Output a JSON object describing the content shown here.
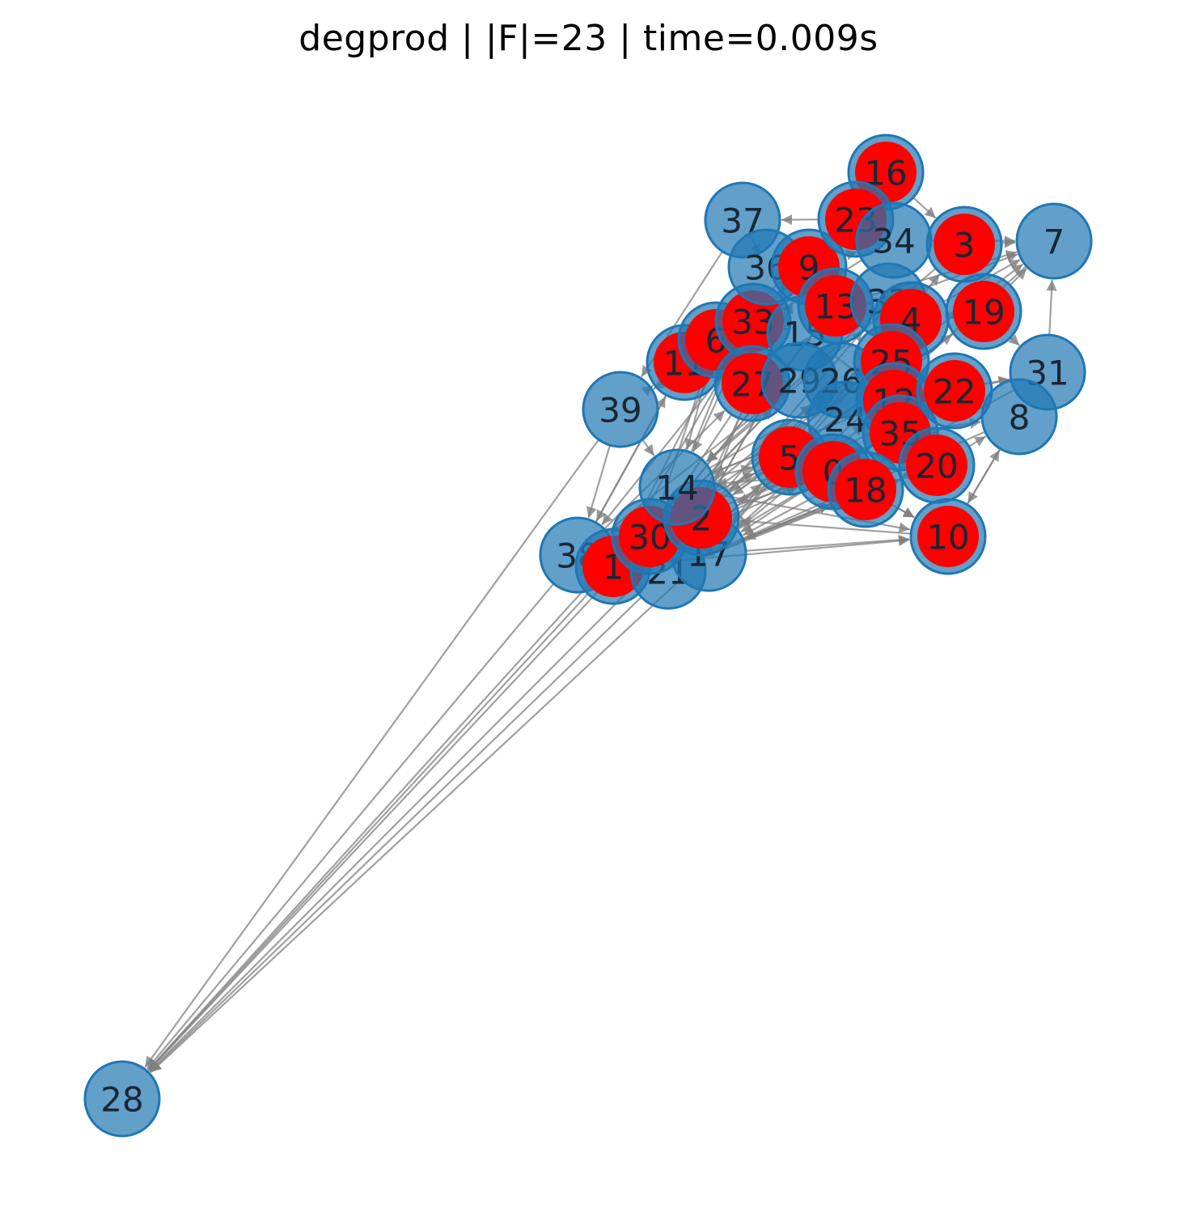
{
  "title": "degprod | |F|=23 | time=0.009s",
  "colors": {
    "normal_fill": "#1f77b4",
    "normal_stroke": "#1f77b4",
    "selected_fill": "#ff0000",
    "edge": "#808080",
    "label": "#1a2633"
  },
  "nodes": [
    {
      "id": "28",
      "selected": false
    },
    {
      "id": "38",
      "selected": false
    },
    {
      "id": "1",
      "selected": true
    },
    {
      "id": "21",
      "selected": false
    },
    {
      "id": "17",
      "selected": false
    },
    {
      "id": "30",
      "selected": true
    },
    {
      "id": "2",
      "selected": true
    },
    {
      "id": "14",
      "selected": false
    },
    {
      "id": "39",
      "selected": false
    },
    {
      "id": "11",
      "selected": true
    },
    {
      "id": "6",
      "selected": true
    },
    {
      "id": "33",
      "selected": true
    },
    {
      "id": "27",
      "selected": true
    },
    {
      "id": "37",
      "selected": false
    },
    {
      "id": "36",
      "selected": false
    },
    {
      "id": "9",
      "selected": true
    },
    {
      "id": "15",
      "selected": false
    },
    {
      "id": "29",
      "selected": false
    },
    {
      "id": "26",
      "selected": false
    },
    {
      "id": "24",
      "selected": false
    },
    {
      "id": "13",
      "selected": true
    },
    {
      "id": "32",
      "selected": false
    },
    {
      "id": "16",
      "selected": true
    },
    {
      "id": "23",
      "selected": true
    },
    {
      "id": "34",
      "selected": false
    },
    {
      "id": "3",
      "selected": true
    },
    {
      "id": "7",
      "selected": false
    },
    {
      "id": "4",
      "selected": true
    },
    {
      "id": "19",
      "selected": true
    },
    {
      "id": "25",
      "selected": true
    },
    {
      "id": "12",
      "selected": true
    },
    {
      "id": "35",
      "selected": true
    },
    {
      "id": "22",
      "selected": true
    },
    {
      "id": "31",
      "selected": false
    },
    {
      "id": "8",
      "selected": false
    },
    {
      "id": "5",
      "selected": true
    },
    {
      "id": "0",
      "selected": true
    },
    {
      "id": "18",
      "selected": true
    },
    {
      "id": "20",
      "selected": true
    },
    {
      "id": "10",
      "selected": true
    }
  ],
  "edges": [
    [
      "38",
      "28"
    ],
    [
      "1",
      "28"
    ],
    [
      "21",
      "28"
    ],
    [
      "17",
      "28"
    ],
    [
      "30",
      "28"
    ],
    [
      "14",
      "28"
    ],
    [
      "2",
      "28"
    ],
    [
      "39",
      "28"
    ],
    [
      "17",
      "10"
    ],
    [
      "0",
      "10"
    ],
    [
      "18",
      "10"
    ],
    [
      "20",
      "8"
    ],
    [
      "10",
      "8"
    ],
    [
      "8",
      "10"
    ],
    [
      "23",
      "37"
    ],
    [
      "16",
      "23"
    ],
    [
      "16",
      "3"
    ],
    [
      "23",
      "34"
    ],
    [
      "34",
      "7"
    ],
    [
      "3",
      "7"
    ],
    [
      "19",
      "7"
    ],
    [
      "4",
      "7"
    ],
    [
      "32",
      "7"
    ],
    [
      "13",
      "7"
    ],
    [
      "25",
      "7"
    ],
    [
      "31",
      "7"
    ],
    [
      "22",
      "31"
    ],
    [
      "12",
      "31"
    ],
    [
      "19",
      "31"
    ],
    [
      "25",
      "8"
    ],
    [
      "35",
      "8"
    ],
    [
      "36",
      "37"
    ],
    [
      "9",
      "34"
    ],
    [
      "6",
      "36"
    ],
    [
      "11",
      "36"
    ],
    [
      "39",
      "11"
    ],
    [
      "39",
      "14"
    ],
    [
      "39",
      "38"
    ],
    [
      "14",
      "38"
    ],
    [
      "2",
      "38"
    ],
    [
      "30",
      "38"
    ],
    [
      "11",
      "38"
    ],
    [
      "6",
      "14"
    ],
    [
      "33",
      "14"
    ],
    [
      "27",
      "2"
    ],
    [
      "27",
      "30"
    ],
    [
      "29",
      "30"
    ],
    [
      "26",
      "17"
    ],
    [
      "24",
      "1"
    ],
    [
      "5",
      "21"
    ],
    [
      "0",
      "21"
    ],
    [
      "18",
      "17"
    ],
    [
      "12",
      "14"
    ],
    [
      "35",
      "2"
    ],
    [
      "20",
      "14"
    ],
    [
      "22",
      "17"
    ],
    [
      "25",
      "30"
    ],
    [
      "4",
      "2"
    ],
    [
      "32",
      "14"
    ],
    [
      "15",
      "21"
    ],
    [
      "13",
      "30"
    ],
    [
      "9",
      "38"
    ],
    [
      "36",
      "1"
    ],
    [
      "37",
      "39"
    ],
    [
      "34",
      "39"
    ],
    [
      "3",
      "14"
    ],
    [
      "19",
      "2"
    ],
    [
      "7",
      "17"
    ],
    [
      "31",
      "17"
    ],
    [
      "8",
      "21"
    ],
    [
      "10",
      "2"
    ],
    [
      "16",
      "33"
    ],
    [
      "23",
      "11"
    ],
    [
      "15",
      "26"
    ],
    [
      "29",
      "24"
    ],
    [
      "26",
      "25"
    ],
    [
      "24",
      "35"
    ],
    [
      "5",
      "0"
    ],
    [
      "0",
      "18"
    ],
    [
      "18",
      "20"
    ],
    [
      "12",
      "20"
    ],
    [
      "35",
      "22"
    ],
    [
      "4",
      "19"
    ],
    [
      "32",
      "4"
    ],
    [
      "13",
      "32"
    ],
    [
      "33",
      "15"
    ],
    [
      "6",
      "27"
    ],
    [
      "11",
      "27"
    ],
    [
      "27",
      "29"
    ],
    [
      "9",
      "13"
    ],
    [
      "36",
      "15"
    ],
    [
      "15",
      "12"
    ],
    [
      "26",
      "22"
    ],
    [
      "24",
      "20"
    ],
    [
      "5",
      "18"
    ],
    [
      "14",
      "5"
    ],
    [
      "2",
      "0"
    ],
    [
      "30",
      "24"
    ],
    [
      "17",
      "18"
    ],
    [
      "21",
      "20"
    ],
    [
      "1",
      "35"
    ],
    [
      "38",
      "5"
    ],
    [
      "14",
      "24"
    ],
    [
      "17",
      "12"
    ],
    [
      "2",
      "26"
    ],
    [
      "30",
      "29"
    ],
    [
      "21",
      "5"
    ],
    [
      "1",
      "0"
    ],
    [
      "38",
      "27"
    ],
    [
      "14",
      "10"
    ],
    [
      "17",
      "20"
    ],
    [
      "2",
      "22"
    ],
    [
      "30",
      "35"
    ],
    [
      "21",
      "18"
    ],
    [
      "1",
      "10"
    ],
    [
      "14",
      "25"
    ],
    [
      "17",
      "4"
    ],
    [
      "2",
      "32"
    ],
    [
      "30",
      "13"
    ],
    [
      "21",
      "9"
    ],
    [
      "1",
      "33"
    ],
    [
      "38",
      "11"
    ],
    [
      "14",
      "36"
    ],
    [
      "17",
      "3"
    ],
    [
      "2",
      "19"
    ],
    [
      "30",
      "6"
    ],
    [
      "21",
      "15"
    ],
    [
      "1",
      "26"
    ],
    [
      "38",
      "29"
    ]
  ]
}
